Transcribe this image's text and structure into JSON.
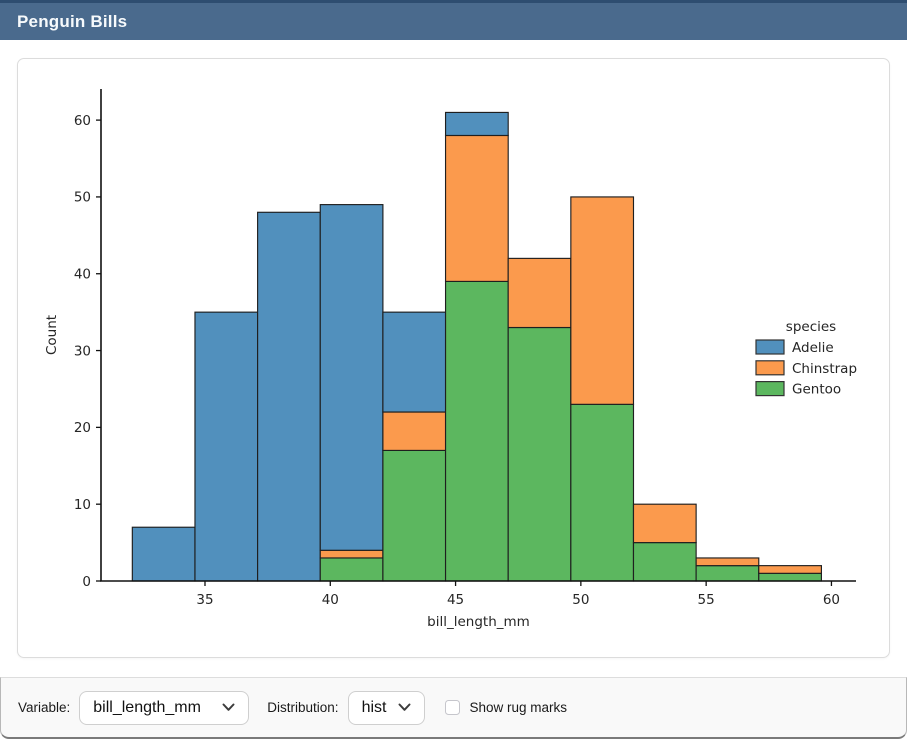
{
  "header": {
    "title": "Penguin Bills"
  },
  "colors": {
    "header_bg": "#4a6a8d",
    "header_top_edge": "#2e4d70",
    "adelie_blue": "#5190bd",
    "chinstrap_orange": "#fb9a4d",
    "gentoo_green": "#5cb75f"
  },
  "footer": {
    "variable_label": "Variable:",
    "variable_select": {
      "value": "bill_length_mm"
    },
    "distribution_label": "Distribution:",
    "distribution_select": {
      "value": "hist"
    },
    "rug_checkbox": {
      "label": "Show rug marks",
      "checked": false
    }
  },
  "chart_data": {
    "type": "bar",
    "subtype": "stacked-histogram",
    "title": "",
    "xlabel": "bill_length_mm",
    "ylabel": "Count",
    "bin_edges": [
      32.1,
      34.6,
      37.1,
      39.6,
      42.1,
      44.6,
      47.1,
      49.6,
      52.1,
      54.6,
      57.1,
      59.6
    ],
    "stack_order_note": "series listed bottom-to-top",
    "series": [
      {
        "name": "Gentoo",
        "color": "#5cb75f",
        "values": [
          0,
          0,
          0,
          3,
          17,
          39,
          33,
          23,
          5,
          2,
          1
        ]
      },
      {
        "name": "Chinstrap",
        "color": "#fb9a4d",
        "values": [
          0,
          0,
          0,
          1,
          5,
          19,
          9,
          27,
          5,
          1,
          1
        ]
      },
      {
        "name": "Adelie",
        "color": "#5190bd",
        "values": [
          7,
          35,
          48,
          45,
          13,
          3,
          0,
          0,
          0,
          0,
          0
        ]
      }
    ],
    "bar_totals": [
      7,
      35,
      48,
      49,
      35,
      61,
      42,
      50,
      10,
      3,
      2
    ],
    "x_ticks": [
      35,
      40,
      45,
      50,
      55,
      60
    ],
    "y_ticks": [
      0,
      10,
      20,
      30,
      40,
      50,
      60
    ],
    "xlim": [
      30.85,
      60.98
    ],
    "ylim": [
      0,
      64.05
    ],
    "grid": false,
    "legend": {
      "title": "species",
      "position": "right",
      "entries": [
        {
          "label": "Adelie",
          "color": "#5190bd"
        },
        {
          "label": "Chinstrap",
          "color": "#fb9a4d"
        },
        {
          "label": "Gentoo",
          "color": "#5cb75f"
        }
      ]
    }
  }
}
